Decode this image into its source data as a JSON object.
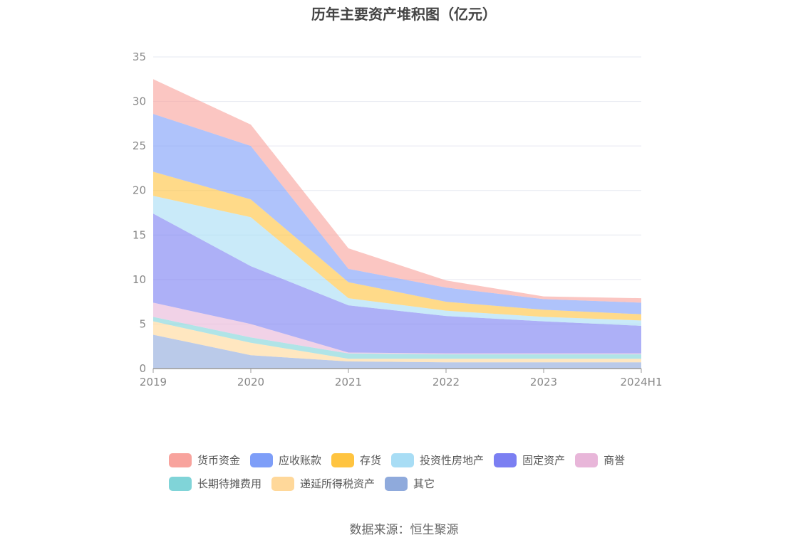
{
  "chart_data": {
    "type": "area",
    "stacked": true,
    "title": "历年主要资产堆积图（亿元）",
    "x": [
      "2019",
      "2020",
      "2021",
      "2022",
      "2023",
      "2024H1"
    ],
    "ylim": [
      0,
      35
    ],
    "yticks": [
      0,
      5,
      10,
      15,
      20,
      25,
      30,
      35
    ],
    "grid": true,
    "legend_position": "bottom",
    "series": [
      {
        "name": "其它",
        "color": "#8FAADC",
        "values": [
          3.8,
          1.5,
          0.8,
          0.7,
          0.7,
          0.7
        ]
      },
      {
        "name": "递延所得税资产",
        "color": "#FFD89A",
        "values": [
          1.5,
          1.4,
          0.3,
          0.4,
          0.4,
          0.4
        ]
      },
      {
        "name": "长期待摊费用",
        "color": "#80D4D8",
        "values": [
          0.5,
          0.6,
          0.6,
          0.5,
          0.5,
          0.5
        ]
      },
      {
        "name": "商誉",
        "color": "#E8B6D9",
        "values": [
          1.6,
          1.5,
          0.1,
          0.1,
          0.1,
          0.1
        ]
      },
      {
        "name": "固定资产",
        "color": "#7B7FF2",
        "values": [
          10.0,
          6.5,
          5.3,
          4.2,
          3.6,
          3.1
        ]
      },
      {
        "name": "投资性房地产",
        "color": "#A8DDF5",
        "values": [
          2.0,
          5.5,
          0.8,
          0.6,
          0.5,
          0.6
        ]
      },
      {
        "name": "存货",
        "color": "#FFC440",
        "values": [
          2.7,
          2.0,
          1.8,
          1.0,
          0.8,
          0.7
        ]
      },
      {
        "name": "应收账款",
        "color": "#7E9EF8",
        "values": [
          6.5,
          6.0,
          1.5,
          1.6,
          1.2,
          1.3
        ]
      },
      {
        "name": "货币资金",
        "color": "#F8A39D",
        "values": [
          3.9,
          2.4,
          2.3,
          0.8,
          0.3,
          0.5
        ]
      }
    ]
  },
  "legend": {
    "row1": [
      {
        "label": "货币资金",
        "color": "#F8A39D"
      },
      {
        "label": "应收账款",
        "color": "#7E9EF8"
      },
      {
        "label": "存货",
        "color": "#FFC440"
      },
      {
        "label": "投资性房地产",
        "color": "#A8DDF5"
      },
      {
        "label": "固定资产",
        "color": "#7B7FF2"
      },
      {
        "label": "商誉",
        "color": "#E8B6D9"
      }
    ],
    "row2": [
      {
        "label": "长期待摊费用",
        "color": "#80D4D8"
      },
      {
        "label": "递延所得税资产",
        "color": "#FFD89A"
      },
      {
        "label": "其它",
        "color": "#8FAADC"
      }
    ]
  },
  "source_text": "数据来源：恒生聚源"
}
